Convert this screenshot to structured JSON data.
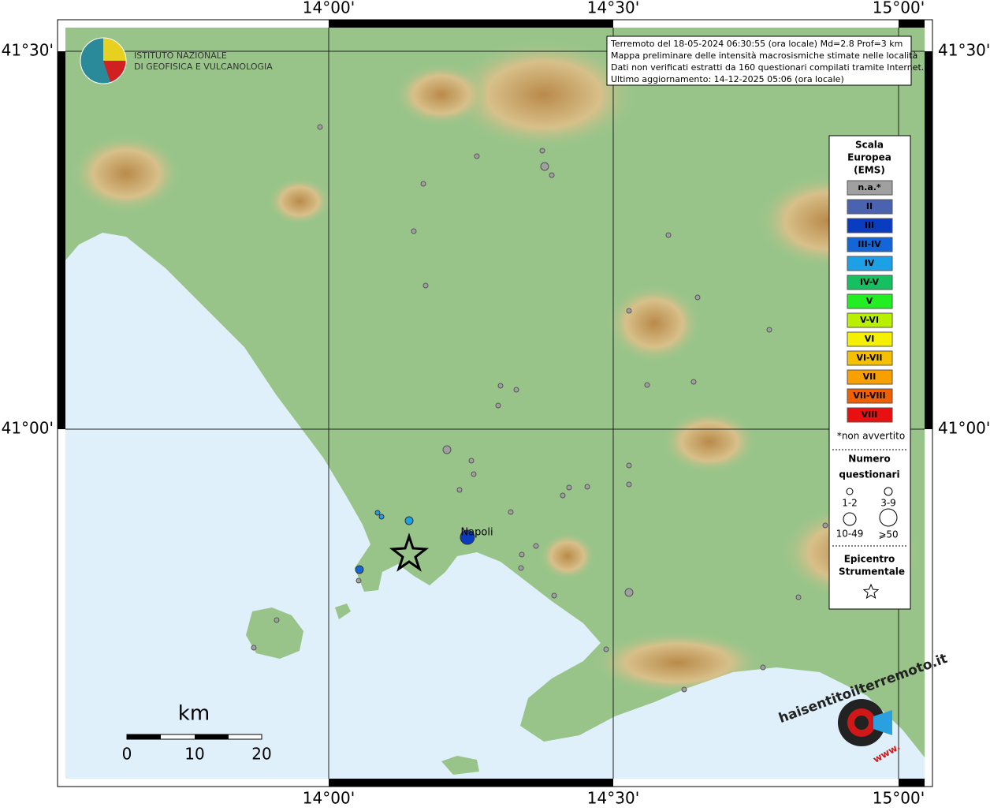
{
  "map": {
    "lon_labels": [
      "14°00'",
      "14°30'",
      "15°00'"
    ],
    "lat_labels": [
      "41°30'",
      "41°00'"
    ],
    "info_box": [
      "Terremoto del 18-05-2024 06:30:55 (ora locale) Md=2.8 Prof=3 km",
      "Mappa preliminare delle intensità macrosismiche stimate nelle località",
      "Dati non verificati estratti da 160 questionari compilati tramite Internet.",
      "Ultimo aggiornamento: 14-12-2025 05:06 (ora locale)"
    ],
    "logo": [
      "ISTITUTO NAZIONALE",
      "DI GEOFISICA E VULCANOLOGIA"
    ],
    "place": "Napoli",
    "scale_bar": {
      "unit": "km",
      "labels": [
        "0",
        "10",
        "20"
      ]
    },
    "legend": {
      "title": [
        "Scala",
        "Europea",
        "(EMS)"
      ],
      "items": [
        {
          "label": "n.a.*",
          "color": "#a0a0a0"
        },
        {
          "label": "II",
          "color": "#4a63b0"
        },
        {
          "label": "III",
          "color": "#0a3cc0"
        },
        {
          "label": "III-IV",
          "color": "#1266d8"
        },
        {
          "label": "IV",
          "color": "#1ea0e6"
        },
        {
          "label": "IV-V",
          "color": "#16c060"
        },
        {
          "label": "V",
          "color": "#22ee22"
        },
        {
          "label": "V-VI",
          "color": "#b8f000"
        },
        {
          "label": "VI",
          "color": "#f4f000"
        },
        {
          "label": "VI-VII",
          "color": "#f4c000"
        },
        {
          "label": "VII",
          "color": "#f8a000"
        },
        {
          "label": "VII-VIII",
          "color": "#f06000"
        },
        {
          "label": "VIII",
          "color": "#e81010"
        }
      ],
      "note": "*non avvertito",
      "count_title": [
        "Numero",
        "questionari"
      ],
      "count_labels": [
        "1-2",
        "3-9",
        "10-49",
        "⩾50"
      ],
      "epicenter": [
        "Epicentro",
        "Strumentale"
      ]
    },
    "brand": [
      "haisentitoilterremoto.it",
      "www."
    ]
  }
}
